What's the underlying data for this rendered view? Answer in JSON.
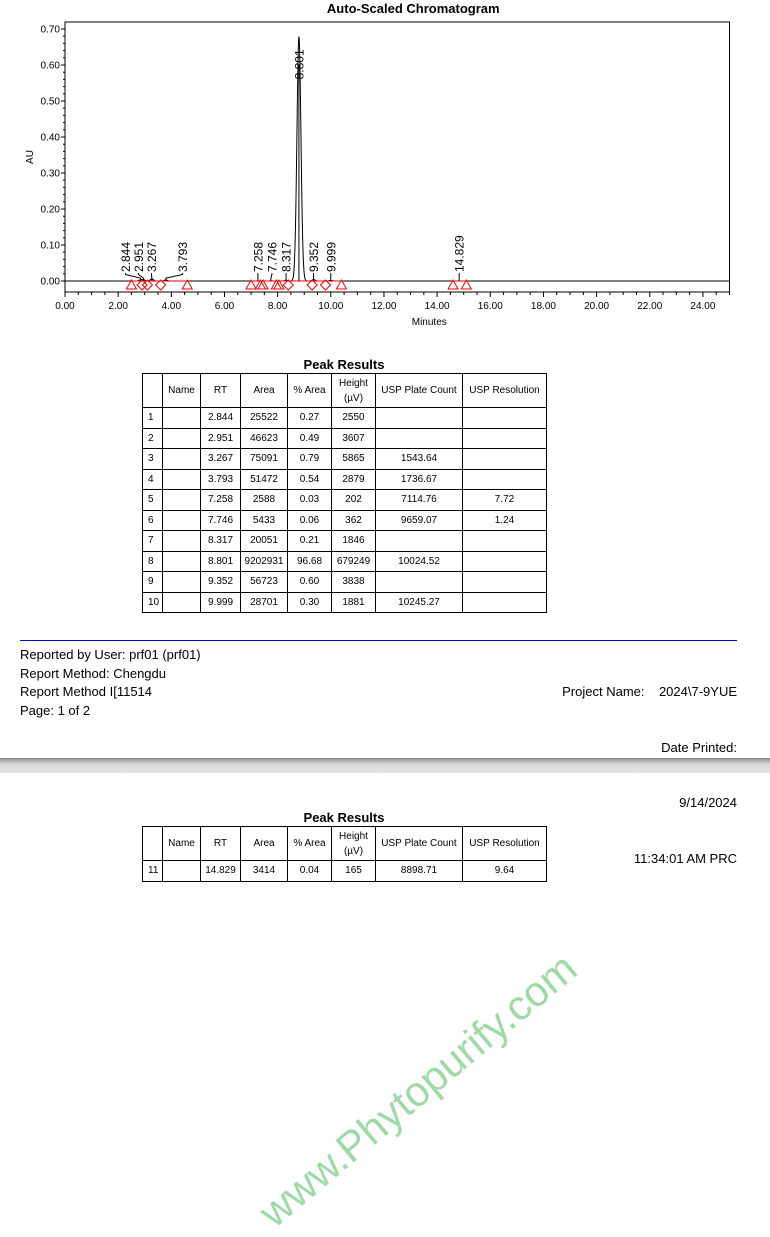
{
  "chart_data": {
    "type": "line",
    "title": "Auto-Scaled Chromatogram",
    "xlabel": "Minutes",
    "ylabel": "AU",
    "xlim": [
      0,
      25
    ],
    "ylim": [
      -0.03,
      0.72
    ],
    "xticks": [
      "0.00",
      "2.00",
      "4.00",
      "6.00",
      "8.00",
      "10.00",
      "12.00",
      "14.00",
      "16.00",
      "18.00",
      "20.00",
      "22.00",
      "24.00"
    ],
    "yticks": [
      "0.00",
      "0.10",
      "0.20",
      "0.30",
      "0.40",
      "0.50",
      "0.60",
      "0.70"
    ],
    "peaks": [
      {
        "rt": 2.844,
        "label": "2.844",
        "height_au": 0.00255
      },
      {
        "rt": 2.951,
        "label": "2.951",
        "height_au": 0.00361
      },
      {
        "rt": 3.267,
        "label": "3.267",
        "height_au": 0.00587
      },
      {
        "rt": 3.793,
        "label": "3.793",
        "height_au": 0.00288
      },
      {
        "rt": 7.258,
        "label": "7.258",
        "height_au": 0.0002
      },
      {
        "rt": 7.746,
        "label": "7.746",
        "height_au": 0.00036
      },
      {
        "rt": 8.317,
        "label": "8.317",
        "height_au": 0.00185
      },
      {
        "rt": 8.801,
        "label": "8.801",
        "height_au": 0.679
      },
      {
        "rt": 9.352,
        "label": "9.352",
        "height_au": 0.00384
      },
      {
        "rt": 9.999,
        "label": "9.999",
        "height_au": 0.00188
      },
      {
        "rt": 14.829,
        "label": "14.829",
        "height_au": 0.00017
      }
    ],
    "markers": {
      "color": "#ff0000",
      "triangles": [
        2.5,
        4.6,
        7.0,
        7.35,
        7.45,
        7.95,
        8.05,
        10.4,
        14.6,
        15.1
      ],
      "diamonds": [
        2.9,
        3.1,
        3.6,
        8.4,
        9.3,
        9.8
      ]
    },
    "grid": false
  },
  "page1": {
    "title": "Peak Results",
    "headers": [
      "",
      "Name",
      "RT",
      "Area",
      "% Area",
      "Height (µV)",
      "USP Plate Count",
      "USP Resolution"
    ],
    "rows": [
      [
        "1",
        "",
        "2.844",
        "25522",
        "0.27",
        "2550",
        "",
        ""
      ],
      [
        "2",
        "",
        "2.951",
        "46623",
        "0.49",
        "3607",
        "",
        ""
      ],
      [
        "3",
        "",
        "3.267",
        "75091",
        "0.79",
        "5865",
        "1543.64",
        ""
      ],
      [
        "4",
        "",
        "3.793",
        "51472",
        "0.54",
        "2879",
        "1736.67",
        ""
      ],
      [
        "5",
        "",
        "7.258",
        "2588",
        "0.03",
        "202",
        "7114.76",
        "7.72"
      ],
      [
        "6",
        "",
        "7.746",
        "5433",
        "0.06",
        "362",
        "9659.07",
        "1.24"
      ],
      [
        "7",
        "",
        "8.317",
        "20051",
        "0.21",
        "1846",
        "",
        ""
      ],
      [
        "8",
        "",
        "8.801",
        "9202931",
        "96.68",
        "679249",
        "10024.52",
        ""
      ],
      [
        "9",
        "",
        "9.352",
        "56723",
        "0.60",
        "3838",
        "",
        ""
      ],
      [
        "10",
        "",
        "9.999",
        "28701",
        "0.30",
        "1881",
        "10245.27",
        ""
      ]
    ]
  },
  "footer": {
    "reported_by": "Reported by User:  prf01 (prf01)",
    "report_method": "Report Method:  Chengdu",
    "report_method_id": "Report Method I[11514",
    "page": "Page: 1 of 2",
    "project_name": "Project Name:    2024\\7-9YUE",
    "date_printed_label": "Date Printed:",
    "date_printed": "9/14/2024",
    "time_printed": "11:34:01 AM PRC"
  },
  "page2": {
    "title": "Peak Results",
    "headers": [
      "",
      "Name",
      "RT",
      "Area",
      "% Area",
      "Height (µV)",
      "USP Plate Count",
      "USP Resolution"
    ],
    "rows": [
      [
        "11",
        "",
        "14.829",
        "3414",
        "0.04",
        "165",
        "8898.71",
        "9.64"
      ]
    ]
  },
  "watermark": "www.Phytopurify.com"
}
